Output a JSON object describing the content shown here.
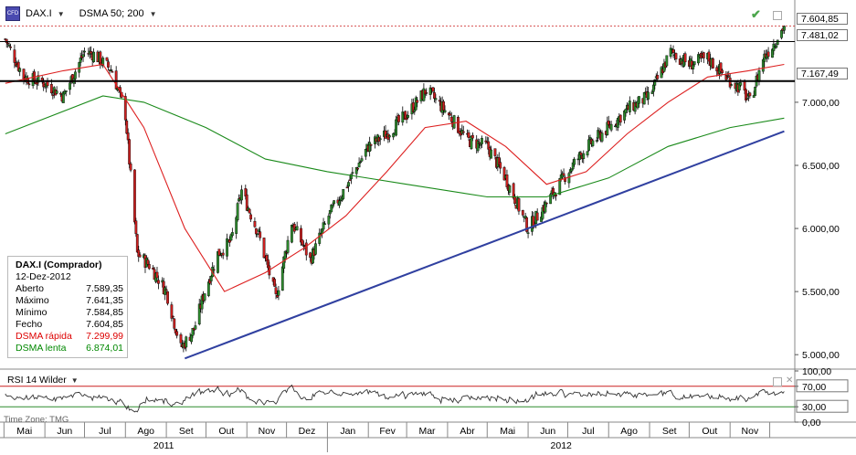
{
  "toolbar": {
    "symbol": "DAX.I",
    "indicator": "DSMA 50; 200",
    "symbol_icon_text": "CFD"
  },
  "info_box": {
    "title": "DAX.I (Comprador)",
    "date": "12-Dez-2012",
    "rows": [
      {
        "label": "Aberto",
        "value": "7.589,35",
        "color": "#000000"
      },
      {
        "label": "Máximo",
        "value": "7.641,35",
        "color": "#000000"
      },
      {
        "label": "Mínimo",
        "value": "7.584,85",
        "color": "#000000"
      },
      {
        "label": "Fecho",
        "value": "7.604,85",
        "color": "#000000"
      },
      {
        "label": "DSMA rápida",
        "value": "7.299,99",
        "color": "#dd0000"
      },
      {
        "label": "DSMA lenta",
        "value": "6.874,01",
        "color": "#008800"
      }
    ]
  },
  "price_boxes": {
    "last": "7.604,85",
    "level1": "7.481,02",
    "level2": "7.167,49"
  },
  "rsi": {
    "label": "RSI 14 Wilder",
    "upper": 70,
    "lower": 30,
    "upper_text": "70,00",
    "lower_text": "30,00",
    "top_text": "100,00",
    "bottom_text": "0,00"
  },
  "time_zone": "Time Zone: TMG",
  "colors": {
    "fast_ma": "#dd2020",
    "slow_ma": "#1a8a1a",
    "trendline": "#3040a0",
    "up_candle": "#2e8b2e",
    "down_candle": "#cc2020",
    "hline": "#000000",
    "last_price_line": "#cc2020",
    "rsi_line": "#333333",
    "rsi_upper": "#cc2020",
    "rsi_lower": "#2e8b2e"
  },
  "chart_data": {
    "type": "candlestick",
    "y_axis": {
      "ticks": [
        5000,
        5500,
        6000,
        6500,
        7000
      ],
      "tick_labels": [
        "5.000,00",
        "5.500,00",
        "6.000,00",
        "6.500,00",
        "7.000,00"
      ],
      "range": [
        4900,
        7680
      ]
    },
    "x_axis": {
      "months": [
        "Mai",
        "Jun",
        "Jul",
        "Ago",
        "Set",
        "Out",
        "Nov",
        "Dez",
        "Jan",
        "Fev",
        "Mar",
        "Abr",
        "Mai",
        "Jun",
        "Jul",
        "Ago",
        "Set",
        "Out",
        "Nov"
      ],
      "years": [
        "2011",
        "2012"
      ]
    },
    "close_series": [
      {
        "date": "2011-05-02",
        "close": 7500
      },
      {
        "date": "2011-05-16",
        "close": 7200
      },
      {
        "date": "2011-06-01",
        "close": 7150
      },
      {
        "date": "2011-06-15",
        "close": 7050
      },
      {
        "date": "2011-07-01",
        "close": 7400
      },
      {
        "date": "2011-07-08",
        "close": 7380
      },
      {
        "date": "2011-07-22",
        "close": 7250
      },
      {
        "date": "2011-08-01",
        "close": 6900
      },
      {
        "date": "2011-08-10",
        "close": 5800
      },
      {
        "date": "2011-08-20",
        "close": 5700
      },
      {
        "date": "2011-09-01",
        "close": 5500
      },
      {
        "date": "2011-09-12",
        "close": 5050
      },
      {
        "date": "2011-09-22",
        "close": 5200
      },
      {
        "date": "2011-09-30",
        "close": 5500
      },
      {
        "date": "2011-10-10",
        "close": 5800
      },
      {
        "date": "2011-10-20",
        "close": 5900
      },
      {
        "date": "2011-10-28",
        "close": 6300
      },
      {
        "date": "2011-11-10",
        "close": 5950
      },
      {
        "date": "2011-11-23",
        "close": 5450
      },
      {
        "date": "2011-12-05",
        "close": 6050
      },
      {
        "date": "2011-12-19",
        "close": 5750
      },
      {
        "date": "2012-01-02",
        "close": 6100
      },
      {
        "date": "2012-01-16",
        "close": 6350
      },
      {
        "date": "2012-02-01",
        "close": 6650
      },
      {
        "date": "2012-02-15",
        "close": 6750
      },
      {
        "date": "2012-03-01",
        "close": 6900
      },
      {
        "date": "2012-03-16",
        "close": 7100
      },
      {
        "date": "2012-04-02",
        "close": 6900
      },
      {
        "date": "2012-04-16",
        "close": 6700
      },
      {
        "date": "2012-05-01",
        "close": 6650
      },
      {
        "date": "2012-05-15",
        "close": 6400
      },
      {
        "date": "2012-06-01",
        "close": 6000
      },
      {
        "date": "2012-06-15",
        "close": 6200
      },
      {
        "date": "2012-07-01",
        "close": 6450
      },
      {
        "date": "2012-07-16",
        "close": 6650
      },
      {
        "date": "2012-08-01",
        "close": 6800
      },
      {
        "date": "2012-08-16",
        "close": 6950
      },
      {
        "date": "2012-09-01",
        "close": 7050
      },
      {
        "date": "2012-09-17",
        "close": 7400
      },
      {
        "date": "2012-10-01",
        "close": 7300
      },
      {
        "date": "2012-10-15",
        "close": 7350
      },
      {
        "date": "2012-10-29",
        "close": 7200
      },
      {
        "date": "2012-11-10",
        "close": 7100
      },
      {
        "date": "2012-11-16",
        "close": 7000
      },
      {
        "date": "2012-11-26",
        "close": 7350
      },
      {
        "date": "2012-12-03",
        "close": 7450
      },
      {
        "date": "2012-12-12",
        "close": 7604.85
      }
    ],
    "fast_ma": [
      {
        "date": "2011-05-02",
        "v": 7150
      },
      {
        "date": "2011-06-15",
        "v": 7250
      },
      {
        "date": "2011-07-15",
        "v": 7300
      },
      {
        "date": "2011-08-15",
        "v": 6800
      },
      {
        "date": "2011-09-15",
        "v": 6000
      },
      {
        "date": "2011-10-15",
        "v": 5500
      },
      {
        "date": "2011-11-15",
        "v": 5650
      },
      {
        "date": "2011-12-15",
        "v": 5850
      },
      {
        "date": "2012-01-15",
        "v": 6100
      },
      {
        "date": "2012-02-15",
        "v": 6450
      },
      {
        "date": "2012-03-15",
        "v": 6800
      },
      {
        "date": "2012-04-15",
        "v": 6850
      },
      {
        "date": "2012-05-15",
        "v": 6650
      },
      {
        "date": "2012-06-15",
        "v": 6350
      },
      {
        "date": "2012-07-15",
        "v": 6450
      },
      {
        "date": "2012-08-15",
        "v": 6750
      },
      {
        "date": "2012-09-15",
        "v": 7000
      },
      {
        "date": "2012-10-15",
        "v": 7200
      },
      {
        "date": "2012-11-15",
        "v": 7250
      },
      {
        "date": "2012-12-12",
        "v": 7299.99
      }
    ],
    "slow_ma": [
      {
        "date": "2011-05-02",
        "v": 6750
      },
      {
        "date": "2011-07-15",
        "v": 7050
      },
      {
        "date": "2011-08-15",
        "v": 7000
      },
      {
        "date": "2011-10-01",
        "v": 6800
      },
      {
        "date": "2011-11-15",
        "v": 6550
      },
      {
        "date": "2012-01-01",
        "v": 6450
      },
      {
        "date": "2012-03-01",
        "v": 6350
      },
      {
        "date": "2012-05-01",
        "v": 6250
      },
      {
        "date": "2012-06-15",
        "v": 6250
      },
      {
        "date": "2012-08-01",
        "v": 6400
      },
      {
        "date": "2012-09-15",
        "v": 6650
      },
      {
        "date": "2012-11-01",
        "v": 6800
      },
      {
        "date": "2012-12-12",
        "v": 6874.01
      }
    ],
    "trendline": [
      {
        "date": "2011-09-15",
        "v": 4970
      },
      {
        "date": "2012-12-12",
        "v": 6770
      }
    ],
    "horizontal_levels": [
      7604.85,
      7481.02,
      7167.49
    ]
  }
}
